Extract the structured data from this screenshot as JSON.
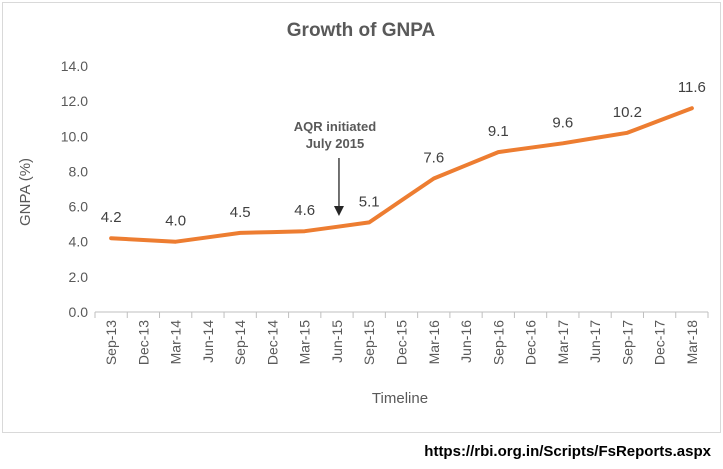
{
  "chart_data": {
    "type": "line",
    "title": "Growth of GNPA",
    "xlabel": "Timeline",
    "ylabel": "GNPA (%)",
    "ylim": [
      0,
      14
    ],
    "yticks": [
      "0.0",
      "2.0",
      "4.0",
      "6.0",
      "8.0",
      "10.0",
      "12.0",
      "14.0"
    ],
    "categories": [
      "Sep-13",
      "Dec-13",
      "Mar-14",
      "Jun-14",
      "Sep-14",
      "Dec-14",
      "Mar-15",
      "Jun-15",
      "Sep-15",
      "Dec-15",
      "Mar-16",
      "Jun-16",
      "Sep-16",
      "Dec-16",
      "Mar-17",
      "Jun-17",
      "Sep-17",
      "Dec-17",
      "Mar-18"
    ],
    "series": [
      {
        "values": [
          4.2,
          4.1,
          4.0,
          4.25,
          4.5,
          4.55,
          4.6,
          4.85,
          5.1,
          6.35,
          7.6,
          8.35,
          9.1,
          9.35,
          9.6,
          9.9,
          10.2,
          10.9,
          11.6
        ],
        "color": "#ed7d31"
      }
    ],
    "data_labels": [
      {
        "category": "Sep-13",
        "text": "4.2"
      },
      {
        "category": "Mar-14",
        "text": "4.0"
      },
      {
        "category": "Sep-14",
        "text": "4.5"
      },
      {
        "category": "Mar-15",
        "text": "4.6"
      },
      {
        "category": "Sep-15",
        "text": "5.1"
      },
      {
        "category": "Mar-16",
        "text": "7.6"
      },
      {
        "category": "Sep-16",
        "text": "9.1"
      },
      {
        "category": "Mar-17",
        "text": "9.6"
      },
      {
        "category": "Sep-17",
        "text": "10.2"
      },
      {
        "category": "Mar-18",
        "text": "11.6"
      }
    ],
    "annotation": {
      "lines": [
        "AQR initiated",
        "July 2015"
      ],
      "category": "Jun-15",
      "arrow": "down"
    },
    "grid": false,
    "legend": "none"
  },
  "source_text": "https://rbi.org.in/Scripts/FsReports.aspx"
}
